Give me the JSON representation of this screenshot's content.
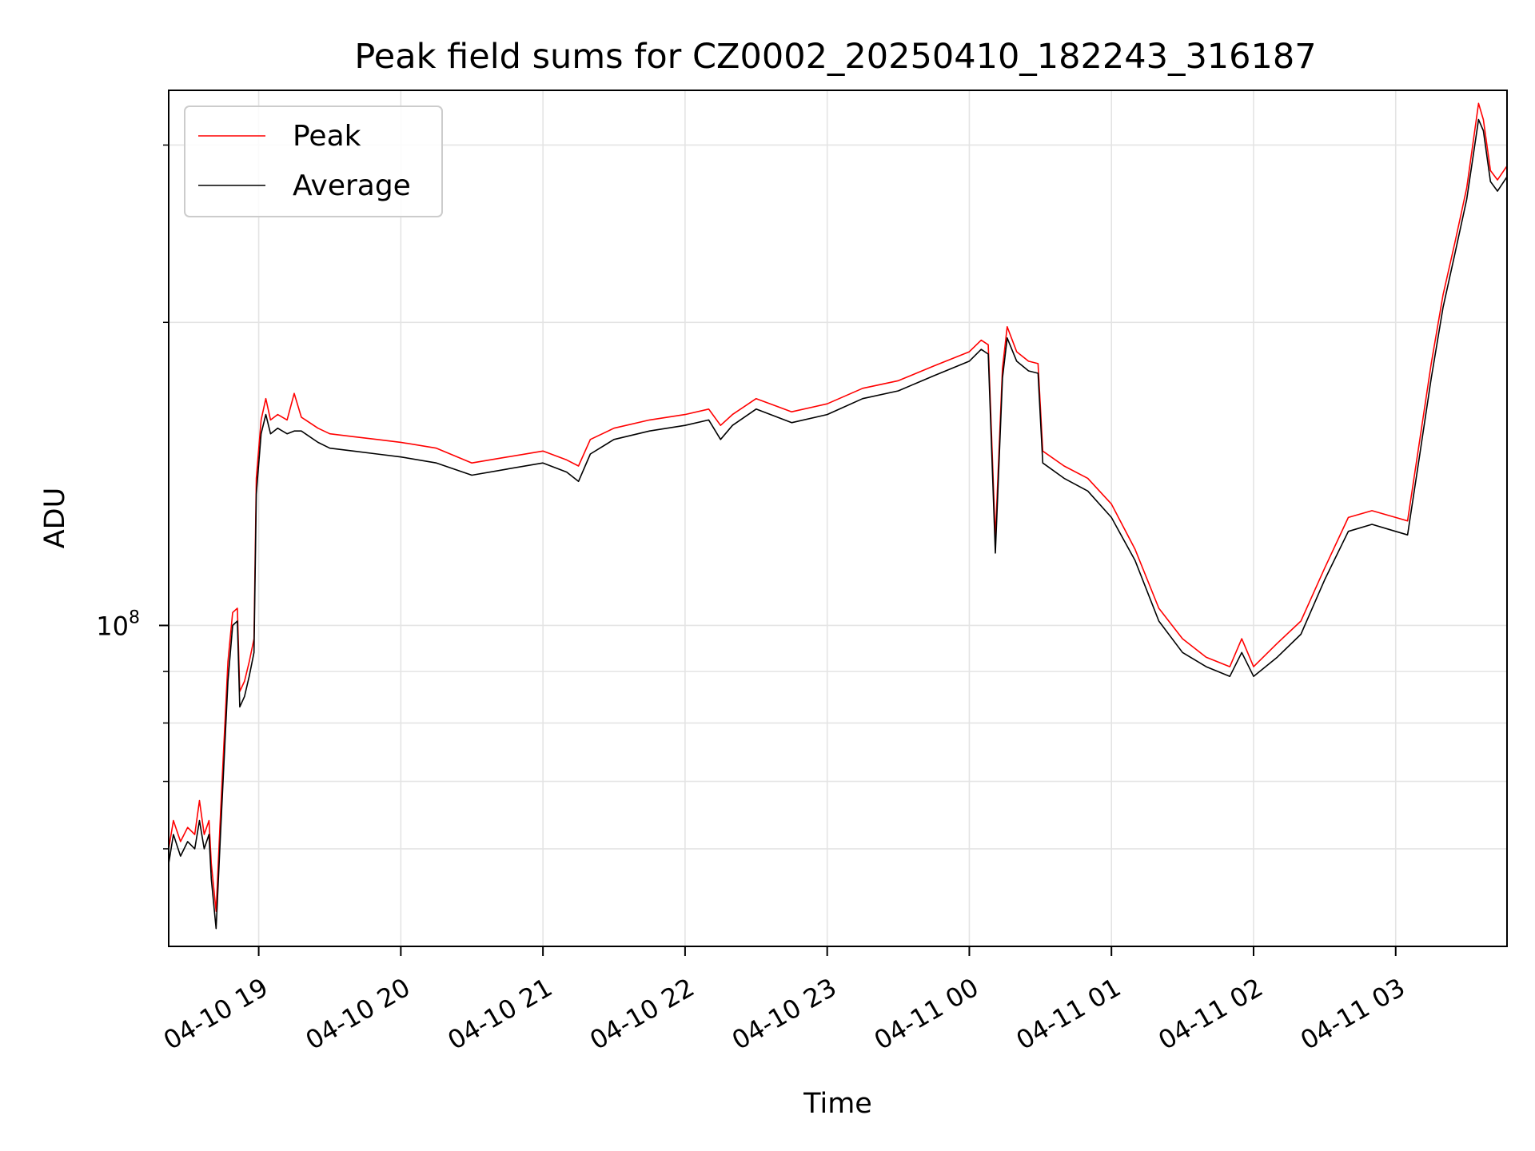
{
  "chart_data": {
    "type": "line",
    "title": "Peak field sums for CZ0002_20250410_182243_316187",
    "xlabel": "Time",
    "ylabel": "ADU",
    "y_scale": "log",
    "grid": true,
    "legend_position": "top-left",
    "xlim": [
      "2025-04-10 18:22",
      "2025-04-11 03:47"
    ],
    "ylim": [
      48000000,
      340000000
    ],
    "x_ticks": [
      {
        "value": "2025-04-10 19:00",
        "label": "04-10 19"
      },
      {
        "value": "2025-04-10 20:00",
        "label": "04-10 20"
      },
      {
        "value": "2025-04-10 21:00",
        "label": "04-10 21"
      },
      {
        "value": "2025-04-10 22:00",
        "label": "04-10 22"
      },
      {
        "value": "2025-04-10 23:00",
        "label": "04-10 23"
      },
      {
        "value": "2025-04-11 00:00",
        "label": "04-11 00"
      },
      {
        "value": "2025-04-11 01:00",
        "label": "04-11 01"
      },
      {
        "value": "2025-04-11 02:00",
        "label": "04-11 02"
      },
      {
        "value": "2025-04-11 03:00",
        "label": "04-11 03"
      }
    ],
    "y_ticks_major": [
      {
        "value": 100000000,
        "label_base": "10",
        "label_exp": "8"
      }
    ],
    "y_ticks_minor": [
      60000000,
      70000000,
      80000000,
      90000000,
      200000000,
      300000000
    ],
    "series": [
      {
        "name": "Peak",
        "color": "#ff0000",
        "points": [
          [
            "2025-04-10 18:22",
            60000000
          ],
          [
            "2025-04-10 18:24",
            64000000
          ],
          [
            "2025-04-10 18:27",
            61000000
          ],
          [
            "2025-04-10 18:30",
            63000000
          ],
          [
            "2025-04-10 18:33",
            62000000
          ],
          [
            "2025-04-10 18:35",
            67000000
          ],
          [
            "2025-04-10 18:37",
            62000000
          ],
          [
            "2025-04-10 18:39",
            64000000
          ],
          [
            "2025-04-10 18:40",
            58000000
          ],
          [
            "2025-04-10 18:42",
            52000000
          ],
          [
            "2025-04-10 18:44",
            66000000
          ],
          [
            "2025-04-10 18:47",
            92000000
          ],
          [
            "2025-04-10 18:49",
            103000000
          ],
          [
            "2025-04-10 18:51",
            104000000
          ],
          [
            "2025-04-10 18:52",
            86000000
          ],
          [
            "2025-04-10 18:54",
            88000000
          ],
          [
            "2025-04-10 18:56",
            92000000
          ],
          [
            "2025-04-10 18:58",
            97000000
          ],
          [
            "2025-04-10 18:59",
            140000000
          ],
          [
            "2025-04-10 19:01",
            160000000
          ],
          [
            "2025-04-10 19:03",
            168000000
          ],
          [
            "2025-04-10 19:05",
            160000000
          ],
          [
            "2025-04-10 19:08",
            162000000
          ],
          [
            "2025-04-10 19:12",
            160000000
          ],
          [
            "2025-04-10 19:15",
            170000000
          ],
          [
            "2025-04-10 19:18",
            161000000
          ],
          [
            "2025-04-10 19:25",
            157000000
          ],
          [
            "2025-04-10 19:30",
            155000000
          ],
          [
            "2025-04-10 19:40",
            154000000
          ],
          [
            "2025-04-10 19:50",
            153000000
          ],
          [
            "2025-04-10 20:00",
            152000000
          ],
          [
            "2025-04-10 20:15",
            150000000
          ],
          [
            "2025-04-10 20:30",
            145000000
          ],
          [
            "2025-04-10 20:45",
            147000000
          ],
          [
            "2025-04-10 21:00",
            149000000
          ],
          [
            "2025-04-10 21:10",
            146000000
          ],
          [
            "2025-04-10 21:15",
            144000000
          ],
          [
            "2025-04-10 21:20",
            153000000
          ],
          [
            "2025-04-10 21:30",
            157000000
          ],
          [
            "2025-04-10 21:45",
            160000000
          ],
          [
            "2025-04-10 22:00",
            162000000
          ],
          [
            "2025-04-10 22:10",
            164000000
          ],
          [
            "2025-04-10 22:15",
            158000000
          ],
          [
            "2025-04-10 22:20",
            162000000
          ],
          [
            "2025-04-10 22:30",
            168000000
          ],
          [
            "2025-04-10 22:45",
            163000000
          ],
          [
            "2025-04-10 23:00",
            166000000
          ],
          [
            "2025-04-10 23:15",
            172000000
          ],
          [
            "2025-04-10 23:30",
            175000000
          ],
          [
            "2025-04-10 23:45",
            181000000
          ],
          [
            "2025-04-11 00:00",
            187000000
          ],
          [
            "2025-04-11 00:05",
            192000000
          ],
          [
            "2025-04-11 00:08",
            190000000
          ],
          [
            "2025-04-11 00:11",
            122000000
          ],
          [
            "2025-04-11 00:14",
            180000000
          ],
          [
            "2025-04-11 00:16",
            198000000
          ],
          [
            "2025-04-11 00:20",
            187000000
          ],
          [
            "2025-04-11 00:25",
            183000000
          ],
          [
            "2025-04-11 00:29",
            182000000
          ],
          [
            "2025-04-11 00:31",
            149000000
          ],
          [
            "2025-04-11 00:40",
            144000000
          ],
          [
            "2025-04-11 00:50",
            140000000
          ],
          [
            "2025-04-11 01:00",
            132000000
          ],
          [
            "2025-04-11 01:10",
            119000000
          ],
          [
            "2025-04-11 01:20",
            104000000
          ],
          [
            "2025-04-11 01:30",
            97000000
          ],
          [
            "2025-04-11 01:40",
            93000000
          ],
          [
            "2025-04-11 01:50",
            91000000
          ],
          [
            "2025-04-11 01:55",
            97000000
          ],
          [
            "2025-04-11 02:00",
            91000000
          ],
          [
            "2025-04-11 02:10",
            96000000
          ],
          [
            "2025-04-11 02:20",
            101000000
          ],
          [
            "2025-04-11 02:30",
            114000000
          ],
          [
            "2025-04-11 02:40",
            128000000
          ],
          [
            "2025-04-11 02:50",
            130000000
          ],
          [
            "2025-04-11 03:00",
            128000000
          ],
          [
            "2025-04-11 03:05",
            127000000
          ],
          [
            "2025-04-11 03:10",
            152000000
          ],
          [
            "2025-04-11 03:15",
            182000000
          ],
          [
            "2025-04-11 03:20",
            213000000
          ],
          [
            "2025-04-11 03:25",
            240000000
          ],
          [
            "2025-04-11 03:30",
            272000000
          ],
          [
            "2025-04-11 03:35",
            330000000
          ],
          [
            "2025-04-11 03:37",
            318000000
          ],
          [
            "2025-04-11 03:40",
            283000000
          ],
          [
            "2025-04-11 03:43",
            277000000
          ],
          [
            "2025-04-11 03:47",
            286000000
          ]
        ]
      },
      {
        "name": "Average",
        "color": "#000000",
        "points": [
          [
            "2025-04-10 18:22",
            58000000
          ],
          [
            "2025-04-10 18:24",
            62000000
          ],
          [
            "2025-04-10 18:27",
            59000000
          ],
          [
            "2025-04-10 18:30",
            61000000
          ],
          [
            "2025-04-10 18:33",
            60000000
          ],
          [
            "2025-04-10 18:35",
            64000000
          ],
          [
            "2025-04-10 18:37",
            60000000
          ],
          [
            "2025-04-10 18:39",
            62000000
          ],
          [
            "2025-04-10 18:40",
            56000000
          ],
          [
            "2025-04-10 18:42",
            50000000
          ],
          [
            "2025-04-10 18:44",
            63000000
          ],
          [
            "2025-04-10 18:47",
            88000000
          ],
          [
            "2025-04-10 18:49",
            100000000
          ],
          [
            "2025-04-10 18:51",
            101000000
          ],
          [
            "2025-04-10 18:52",
            83000000
          ],
          [
            "2025-04-10 18:54",
            85000000
          ],
          [
            "2025-04-10 18:56",
            89000000
          ],
          [
            "2025-04-10 18:58",
            94000000
          ],
          [
            "2025-04-10 18:59",
            135000000
          ],
          [
            "2025-04-10 19:01",
            155000000
          ],
          [
            "2025-04-10 19:03",
            162000000
          ],
          [
            "2025-04-10 19:05",
            155000000
          ],
          [
            "2025-04-10 19:08",
            157000000
          ],
          [
            "2025-04-10 19:12",
            155000000
          ],
          [
            "2025-04-10 19:15",
            156000000
          ],
          [
            "2025-04-10 19:18",
            156000000
          ],
          [
            "2025-04-10 19:25",
            152000000
          ],
          [
            "2025-04-10 19:30",
            150000000
          ],
          [
            "2025-04-10 19:40",
            149000000
          ],
          [
            "2025-04-10 19:50",
            148000000
          ],
          [
            "2025-04-10 20:00",
            147000000
          ],
          [
            "2025-04-10 20:15",
            145000000
          ],
          [
            "2025-04-10 20:30",
            141000000
          ],
          [
            "2025-04-10 20:45",
            143000000
          ],
          [
            "2025-04-10 21:00",
            145000000
          ],
          [
            "2025-04-10 21:10",
            142000000
          ],
          [
            "2025-04-10 21:15",
            139000000
          ],
          [
            "2025-04-10 21:20",
            148000000
          ],
          [
            "2025-04-10 21:30",
            153000000
          ],
          [
            "2025-04-10 21:45",
            156000000
          ],
          [
            "2025-04-10 22:00",
            158000000
          ],
          [
            "2025-04-10 22:10",
            160000000
          ],
          [
            "2025-04-10 22:15",
            153000000
          ],
          [
            "2025-04-10 22:20",
            158000000
          ],
          [
            "2025-04-10 22:30",
            164000000
          ],
          [
            "2025-04-10 22:45",
            159000000
          ],
          [
            "2025-04-10 23:00",
            162000000
          ],
          [
            "2025-04-10 23:15",
            168000000
          ],
          [
            "2025-04-10 23:30",
            171000000
          ],
          [
            "2025-04-10 23:45",
            177000000
          ],
          [
            "2025-04-11 00:00",
            183000000
          ],
          [
            "2025-04-11 00:05",
            188000000
          ],
          [
            "2025-04-11 00:08",
            186000000
          ],
          [
            "2025-04-11 00:11",
            118000000
          ],
          [
            "2025-04-11 00:14",
            176000000
          ],
          [
            "2025-04-11 00:16",
            193000000
          ],
          [
            "2025-04-11 00:20",
            183000000
          ],
          [
            "2025-04-11 00:25",
            179000000
          ],
          [
            "2025-04-11 00:29",
            178000000
          ],
          [
            "2025-04-11 00:31",
            145000000
          ],
          [
            "2025-04-11 00:40",
            140000000
          ],
          [
            "2025-04-11 00:50",
            136000000
          ],
          [
            "2025-04-11 01:00",
            128000000
          ],
          [
            "2025-04-11 01:10",
            116000000
          ],
          [
            "2025-04-11 01:20",
            101000000
          ],
          [
            "2025-04-11 01:30",
            94000000
          ],
          [
            "2025-04-11 01:40",
            91000000
          ],
          [
            "2025-04-11 01:50",
            89000000
          ],
          [
            "2025-04-11 01:55",
            94000000
          ],
          [
            "2025-04-11 02:00",
            89000000
          ],
          [
            "2025-04-11 02:10",
            93000000
          ],
          [
            "2025-04-11 02:20",
            98000000
          ],
          [
            "2025-04-11 02:30",
            111000000
          ],
          [
            "2025-04-11 02:40",
            124000000
          ],
          [
            "2025-04-11 02:50",
            126000000
          ],
          [
            "2025-04-11 03:00",
            124000000
          ],
          [
            "2025-04-11 03:05",
            123000000
          ],
          [
            "2025-04-11 03:10",
            147000000
          ],
          [
            "2025-04-11 03:15",
            176000000
          ],
          [
            "2025-04-11 03:20",
            207000000
          ],
          [
            "2025-04-11 03:25",
            234000000
          ],
          [
            "2025-04-11 03:30",
            265000000
          ],
          [
            "2025-04-11 03:35",
            318000000
          ],
          [
            "2025-04-11 03:37",
            310000000
          ],
          [
            "2025-04-11 03:40",
            276000000
          ],
          [
            "2025-04-11 03:43",
            270000000
          ],
          [
            "2025-04-11 03:47",
            279000000
          ]
        ]
      }
    ]
  }
}
